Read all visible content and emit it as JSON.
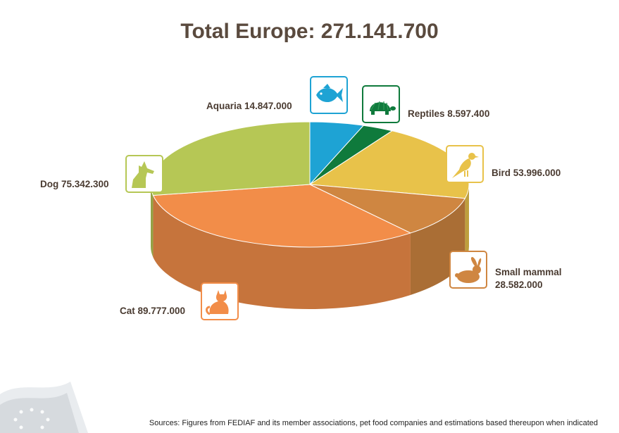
{
  "chart_data": {
    "type": "pie",
    "title": "Total Europe: 271.141.700",
    "slices": [
      {
        "name": "Aquaria",
        "display": "14.847.000",
        "value": 14847000,
        "color": "#1ea3d4",
        "icon": "fish-icon"
      },
      {
        "name": "Reptiles",
        "display": "8.597.400",
        "value": 8597400,
        "color": "#0f7a3c",
        "icon": "turtle-icon"
      },
      {
        "name": "Bird",
        "display": "53.996.000",
        "value": 53996000,
        "color": "#e8c24a",
        "icon": "bird-icon"
      },
      {
        "name": "Small mammal",
        "display": "28.582.000",
        "value": 28582000,
        "color": "#cf8641",
        "icon": "rabbit-icon"
      },
      {
        "name": "Cat",
        "display": "89.777.000",
        "value": 89777000,
        "color": "#f28d49",
        "icon": "cat-icon"
      },
      {
        "name": "Dog",
        "display": "75.342.300",
        "value": 75342300,
        "color": "#b6c755",
        "icon": "dog-icon"
      }
    ]
  },
  "labels": {
    "aquaria": "Aquaria 14.847.000",
    "reptiles": "Reptiles 8.597.400",
    "bird": "Bird 53.996.000",
    "small_mammal_name": "Small mammal",
    "small_mammal_value": "28.582.000",
    "cat": "Cat 89.777.000",
    "dog": "Dog 75.342.300"
  },
  "footer": "Sources: Figures from FEDIAF and its member associations, pet food companies and estimations based thereupon when indicated"
}
